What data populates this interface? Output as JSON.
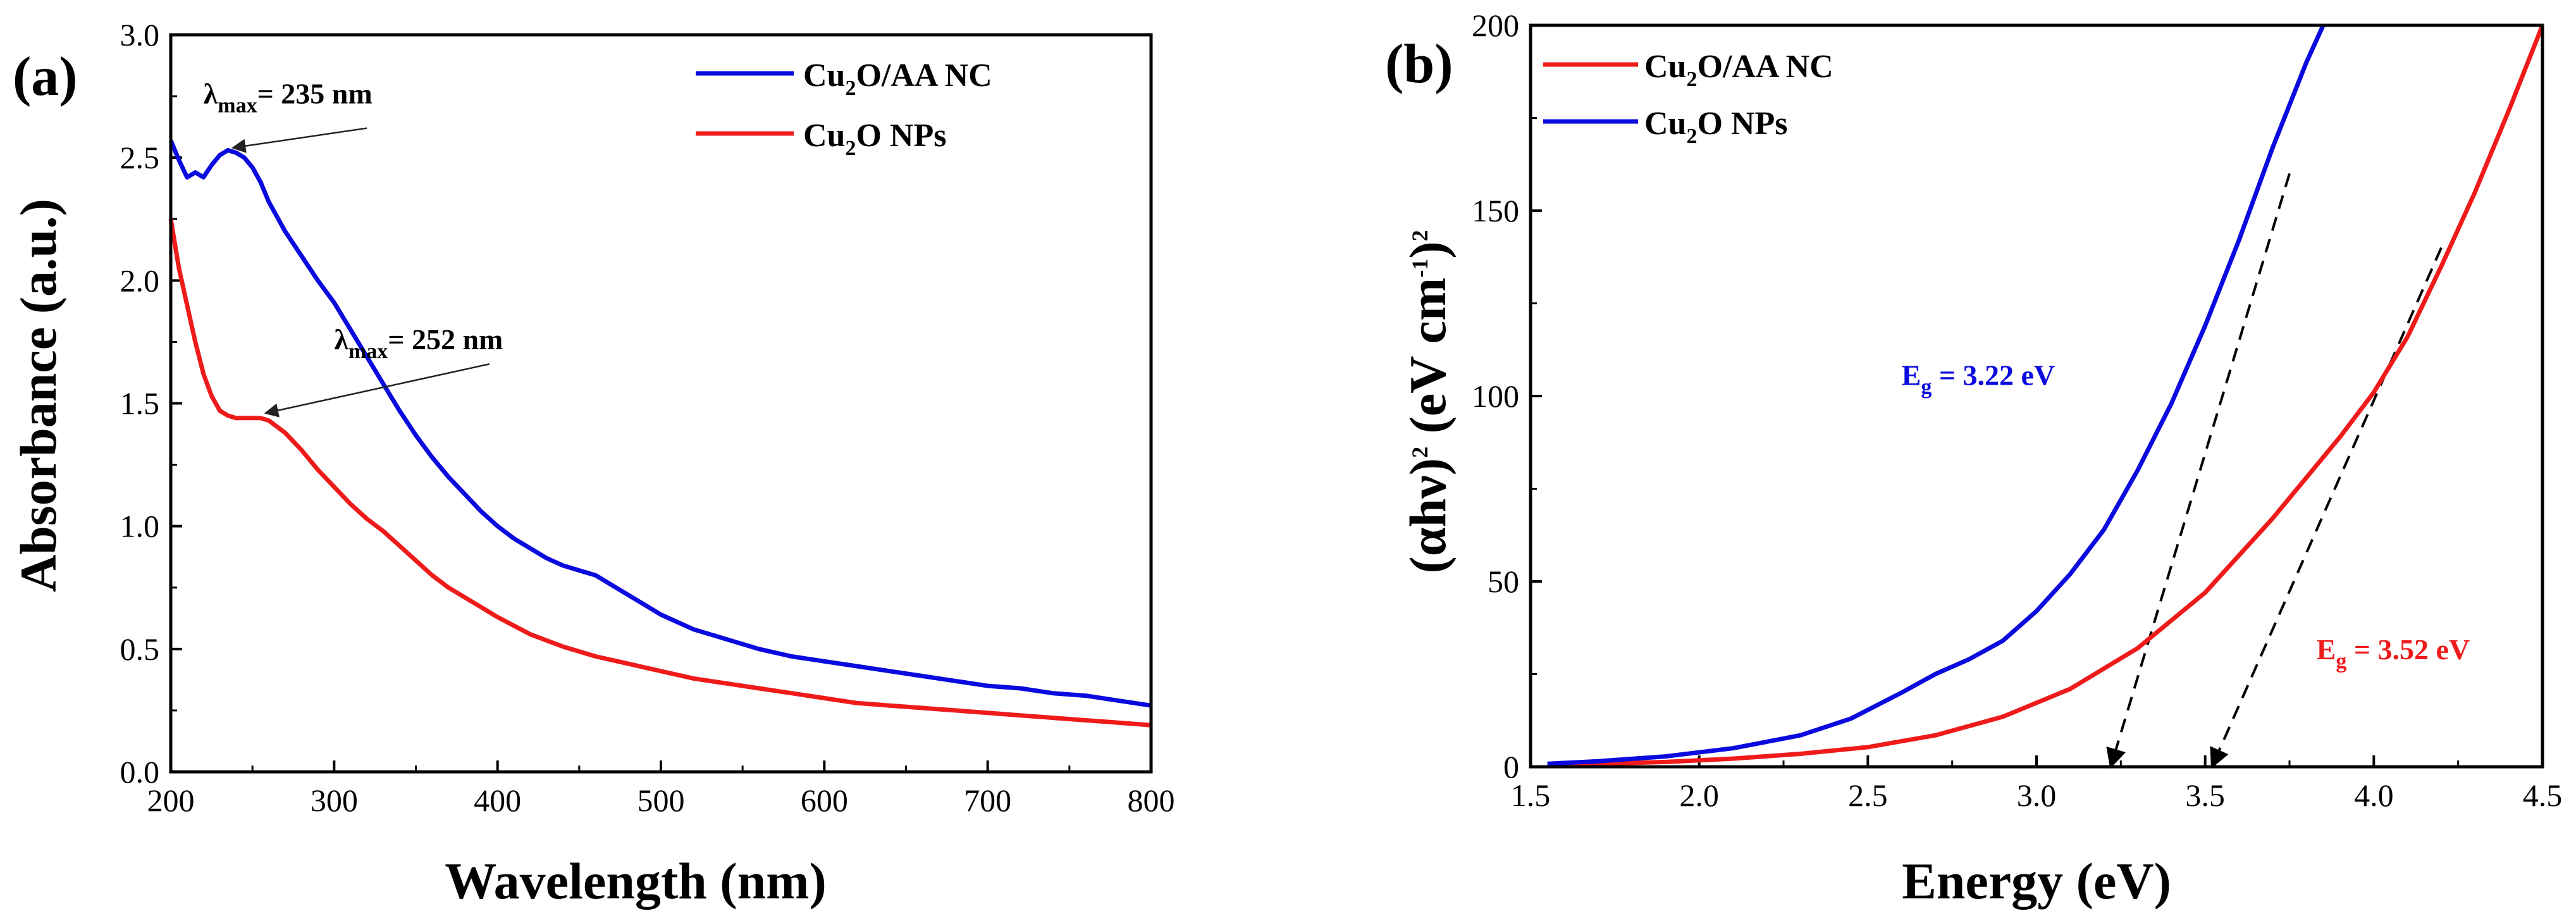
{
  "chart_data": [
    {
      "type": "line",
      "panel_label": "(a)",
      "xlabel": "Wavelength (nm)",
      "ylabel": "Absorbance (a.u.)",
      "xlim": [
        200,
        800
      ],
      "ylim": [
        0.0,
        3.0
      ],
      "xticks": [
        "200",
        "300",
        "400",
        "500",
        "600",
        "700",
        "800"
      ],
      "yticks": [
        "0.0",
        "0.5",
        "1.0",
        "1.5",
        "2.0",
        "2.5",
        "3.0"
      ],
      "legend_position": "top-right",
      "series": [
        {
          "name": "Cu2O/AA NC",
          "legend_base": "Cu",
          "legend_sub": "2",
          "legend_rest": "O/AA NC",
          "color": "#0a0adf",
          "x": [
            200,
            205,
            210,
            215,
            220,
            225,
            230,
            235,
            240,
            245,
            250,
            255,
            260,
            270,
            280,
            290,
            300,
            310,
            320,
            330,
            340,
            350,
            360,
            370,
            380,
            390,
            400,
            410,
            420,
            430,
            440,
            450,
            460,
            470,
            480,
            490,
            500,
            520,
            540,
            560,
            580,
            600,
            620,
            640,
            660,
            680,
            700,
            720,
            740,
            760,
            780,
            800
          ],
          "y": [
            2.57,
            2.49,
            2.42,
            2.44,
            2.42,
            2.47,
            2.51,
            2.53,
            2.52,
            2.5,
            2.46,
            2.4,
            2.32,
            2.2,
            2.1,
            2.0,
            1.91,
            1.8,
            1.69,
            1.58,
            1.47,
            1.37,
            1.28,
            1.2,
            1.13,
            1.06,
            1.0,
            0.95,
            0.91,
            0.87,
            0.84,
            0.82,
            0.8,
            0.76,
            0.72,
            0.68,
            0.64,
            0.58,
            0.54,
            0.5,
            0.47,
            0.45,
            0.43,
            0.41,
            0.39,
            0.37,
            0.35,
            0.34,
            0.32,
            0.31,
            0.29,
            0.27
          ]
        },
        {
          "name": "Cu2O NPs",
          "legend_base": "Cu",
          "legend_sub": "2",
          "legend_rest": "O NPs",
          "color": "#ef1b1b",
          "x": [
            200,
            205,
            210,
            215,
            220,
            225,
            230,
            235,
            240,
            245,
            250,
            255,
            260,
            270,
            280,
            290,
            300,
            310,
            320,
            330,
            340,
            350,
            360,
            370,
            380,
            390,
            400,
            420,
            440,
            460,
            480,
            500,
            520,
            540,
            560,
            580,
            600,
            620,
            640,
            660,
            680,
            700,
            720,
            740,
            760,
            780,
            800
          ],
          "y": [
            2.25,
            2.05,
            1.9,
            1.75,
            1.62,
            1.53,
            1.47,
            1.45,
            1.44,
            1.44,
            1.44,
            1.44,
            1.43,
            1.38,
            1.31,
            1.23,
            1.16,
            1.09,
            1.03,
            0.98,
            0.92,
            0.86,
            0.8,
            0.75,
            0.71,
            0.67,
            0.63,
            0.56,
            0.51,
            0.47,
            0.44,
            0.41,
            0.38,
            0.36,
            0.34,
            0.32,
            0.3,
            0.28,
            0.27,
            0.26,
            0.25,
            0.24,
            0.23,
            0.22,
            0.21,
            0.2,
            0.19
          ]
        }
      ],
      "annotations": [
        {
          "label": "λ",
          "sub": "max",
          "rest": "= 235 nm",
          "text_anchor": [
            220,
            2.72
          ],
          "arrow_from": [
            320,
            2.62
          ],
          "arrow_to": [
            238,
            2.54
          ]
        },
        {
          "label": "λ",
          "sub": "max",
          "rest": "= 252 nm",
          "text_anchor": [
            300,
            1.72
          ],
          "arrow_from": [
            395,
            1.66
          ],
          "arrow_to": [
            258,
            1.46
          ]
        }
      ]
    },
    {
      "type": "line",
      "panel_label": "(b)",
      "xlabel": "Energy (eV)",
      "ylabel_parts": [
        "(αhν)",
        "2",
        " (eV cm",
        "-1",
        ")",
        "2"
      ],
      "xlim": [
        1.5,
        4.5
      ],
      "ylim": [
        0,
        200
      ],
      "xticks": [
        "1.5",
        "2.0",
        "2.5",
        "3.0",
        "3.5",
        "4.0",
        "4.5"
      ],
      "yticks": [
        "0",
        "50",
        "100",
        "150",
        "200"
      ],
      "legend_position": "top-left",
      "series": [
        {
          "name": "Cu2O/AA NC",
          "legend_base": "Cu",
          "legend_sub": "2",
          "legend_rest": "O/AA NC",
          "color": "#ef1b1b",
          "x": [
            1.55,
            1.7,
            1.9,
            2.1,
            2.3,
            2.5,
            2.7,
            2.9,
            3.1,
            3.3,
            3.5,
            3.7,
            3.9,
            4.0,
            4.1,
            4.2,
            4.3,
            4.4,
            4.5
          ],
          "y": [
            0.5,
            0.8,
            1.3,
            2.2,
            3.5,
            5.3,
            8.5,
            13.5,
            21,
            32,
            47,
            67,
            89,
            101,
            116,
            135,
            155,
            177,
            200
          ]
        },
        {
          "name": "Cu2O NPs",
          "legend_base": "Cu",
          "legend_sub": "2",
          "legend_rest": "O NPs",
          "color": "#0a0adf",
          "x": [
            1.55,
            1.7,
            1.9,
            2.1,
            2.3,
            2.45,
            2.6,
            2.7,
            2.8,
            2.9,
            3.0,
            3.1,
            3.2,
            3.3,
            3.4,
            3.5,
            3.6,
            3.7,
            3.8,
            3.85
          ],
          "y": [
            0.8,
            1.5,
            2.8,
            5,
            8.5,
            13,
            20,
            25,
            29,
            34,
            42,
            52,
            64,
            80,
            98,
            119,
            142,
            167,
            190,
            200
          ]
        }
      ],
      "fit_lines": [
        {
          "color": "#000000",
          "style": "dashed",
          "from": [
            3.75,
            160
          ],
          "to": [
            3.22,
            0
          ]
        },
        {
          "color": "#000000",
          "style": "dashed",
          "from": [
            4.2,
            140
          ],
          "to": [
            3.52,
            0
          ]
        }
      ],
      "annotations": [
        {
          "label": "E",
          "sub": "g",
          "rest": " = 3.22 eV",
          "color": "#0a0adf",
          "text_anchor": [
            2.6,
            103
          ]
        },
        {
          "label": "E",
          "sub": "g",
          "rest": " = 3.52 eV",
          "color": "#ef1b1b",
          "text_anchor": [
            3.83,
            29
          ]
        }
      ]
    }
  ]
}
